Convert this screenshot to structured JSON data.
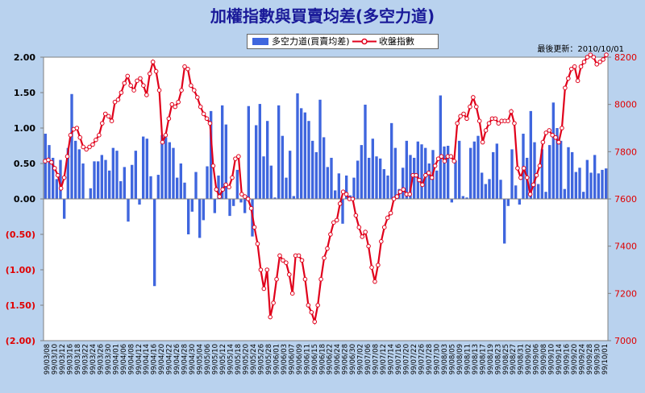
{
  "header": {
    "title": "加權指數與買賣均差(多空力道)",
    "update_text": "最後更新：2010/10/01"
  },
  "legend": {
    "bar_label": "多空力道(買賣均差)",
    "line_label": "收盤指數"
  },
  "colors": {
    "bar": "#3f66de",
    "line": "#e0001b",
    "marker_fill": "#ffffff",
    "plot_bg": "#ffffff",
    "right_axis_text": "#e00000"
  },
  "chart_data": {
    "type": "bar+line",
    "title": "加權指數與買賣均差(多空力道)",
    "left_axis": {
      "ylim": [
        -2.0,
        2.0
      ],
      "ticks": [
        2.0,
        1.5,
        1.0,
        0.5,
        0.0,
        -0.5,
        -1.0,
        -1.5,
        -2.0
      ],
      "tick_labels": [
        "2.00",
        "1.50",
        "1.00",
        "0.50",
        "0.00",
        "(0.50)",
        "(1.00)",
        "(1.50)",
        "(2.00)"
      ]
    },
    "right_axis": {
      "ylim": [
        7000,
        8200
      ],
      "ticks": [
        8200,
        8000,
        7800,
        7600,
        7400,
        7200,
        7000
      ],
      "tick_labels": [
        "8200",
        "8000",
        "7800",
        "7600",
        "7400",
        "7200",
        "7000"
      ]
    },
    "x_tick_labels": [
      "99/03/08",
      "99/03/10",
      "99/03/12",
      "99/03/16",
      "99/03/18",
      "99/03/22",
      "99/03/24",
      "99/03/26",
      "99/03/30",
      "99/04/01",
      "99/04/06",
      "99/04/08",
      "99/04/12",
      "99/04/14",
      "99/04/16",
      "99/04/20",
      "99/04/22",
      "99/04/26",
      "99/04/28",
      "99/04/30",
      "99/05/04",
      "99/05/06",
      "99/05/10",
      "99/05/12",
      "99/05/14",
      "99/05/18",
      "99/05/20",
      "99/05/24",
      "99/05/26",
      "99/05/28",
      "99/06/01",
      "99/06/03",
      "99/06/07",
      "99/06/09",
      "99/06/11",
      "99/06/15",
      "99/06/18",
      "99/06/22",
      "99/06/24",
      "99/06/28",
      "99/06/30",
      "99/07/02",
      "99/07/06",
      "99/07/08",
      "99/07/12",
      "99/07/14",
      "99/07/16",
      "99/07/20",
      "99/07/22",
      "99/07/26",
      "99/07/28",
      "99/07/30",
      "99/08/03",
      "99/08/05",
      "99/08/09",
      "99/08/11",
      "99/08/13",
      "99/08/17",
      "99/08/19",
      "99/08/23",
      "99/08/25",
      "99/08/27",
      "99/08/31",
      "99/09/02",
      "99/09/06",
      "99/09/08",
      "99/09/10",
      "99/09/14",
      "99/09/16",
      "99/09/20",
      "99/09/24",
      "99/09/28",
      "99/09/30",
      "99/10/01"
    ],
    "series": [
      {
        "name": "多空力道(買賣均差)",
        "type": "bar",
        "axis": "left",
        "values": [
          0.92,
          0.76,
          0.58,
          0.28,
          0.55,
          -0.28,
          0.72,
          1.48,
          0.82,
          0.7,
          0.5,
          0.0,
          0.15,
          0.53,
          0.53,
          0.62,
          0.55,
          0.4,
          0.72,
          0.68,
          0.25,
          0.45,
          -0.32,
          0.48,
          0.68,
          -0.08,
          0.88,
          0.85,
          0.32,
          -1.23,
          0.34,
          0.9,
          0.87,
          0.8,
          0.72,
          0.3,
          0.5,
          0.23,
          -0.5,
          -0.18,
          0.38,
          -0.55,
          -0.3,
          0.46,
          1.24,
          -0.2,
          0.33,
          1.32,
          1.05,
          -0.24,
          -0.1,
          0.41,
          -0.05,
          -0.2,
          1.31,
          -0.53,
          1.04,
          1.34,
          0.6,
          1.1,
          0.47,
          0.02,
          1.32,
          0.89,
          0.3,
          0.68,
          0.04,
          1.49,
          1.28,
          1.22,
          1.1,
          0.82,
          0.66,
          1.4,
          0.87,
          0.45,
          0.58,
          0.12,
          0.36,
          -0.35,
          0.33,
          0.05,
          0.3,
          0.54,
          0.76,
          1.33,
          0.58,
          0.85,
          0.6,
          0.57,
          0.42,
          0.33,
          1.07,
          0.72,
          0.14,
          0.44,
          0.82,
          0.62,
          0.58,
          0.81,
          0.77,
          0.72,
          0.5,
          0.69,
          0.4,
          1.46,
          0.74,
          0.75,
          -0.05,
          0.54,
          0.82,
          0.04,
          0.02,
          0.72,
          0.81,
          0.89,
          0.37,
          0.21,
          0.28,
          0.66,
          0.78,
          0.27,
          -0.63,
          -0.1,
          0.7,
          0.19,
          -0.08,
          0.92,
          0.58,
          1.24,
          0.8,
          0.21,
          0.7,
          0.1,
          0.76,
          1.36,
          1.0,
          0.82,
          0.14,
          0.73,
          0.66,
          0.38,
          0.44,
          0.1,
          0.55,
          0.37,
          0.62,
          0.36,
          0.41,
          0.43
        ]
      },
      {
        "name": "收盤指數",
        "type": "line",
        "axis": "right",
        "values": [
          7760,
          7765,
          7755,
          7730,
          7700,
          7645,
          7690,
          7780,
          7870,
          7895,
          7900,
          7860,
          7820,
          7810,
          7820,
          7830,
          7850,
          7870,
          7920,
          7960,
          7950,
          7930,
          8010,
          8020,
          8050,
          8090,
          8120,
          8080,
          8060,
          8100,
          8110,
          8080,
          8040,
          8130,
          8180,
          8140,
          8060,
          7840,
          7870,
          7940,
          8000,
          7990,
          8010,
          8060,
          8160,
          8150,
          8080,
          8060,
          8030,
          7990,
          7960,
          7940,
          7920,
          7740,
          7640,
          7610,
          7640,
          7660,
          7650,
          7690,
          7770,
          7780,
          7620,
          7610,
          7600,
          7560,
          7480,
          7410,
          7300,
          7220,
          7300,
          7100,
          7160,
          7260,
          7360,
          7340,
          7330,
          7280,
          7200,
          7360,
          7360,
          7340,
          7260,
          7150,
          7120,
          7080,
          7150,
          7260,
          7350,
          7390,
          7450,
          7500,
          7510,
          7580,
          7630,
          7620,
          7600,
          7600,
          7530,
          7480,
          7440,
          7460,
          7400,
          7310,
          7250,
          7320,
          7420,
          7480,
          7520,
          7540,
          7600,
          7610,
          7630,
          7640,
          7620,
          7620,
          7700,
          7700,
          7680,
          7660,
          7700,
          7710,
          7690,
          7740,
          7770,
          7780,
          7760,
          7780,
          7780,
          7760,
          7920,
          7950,
          7960,
          7940,
          7990,
          8030,
          7990,
          7930,
          7840,
          7890,
          7920,
          7940,
          7940,
          7920,
          7930,
          7930,
          7930,
          7970,
          7920,
          7730,
          7690,
          7730,
          7690,
          7620,
          7660,
          7700,
          7740,
          7840,
          7880,
          7890,
          7870,
          7860,
          7840,
          7900,
          8070,
          8110,
          8150,
          8160,
          8100,
          8160,
          8180,
          8200,
          8210,
          8200,
          8170,
          8180,
          8190,
          8210
        ]
      }
    ],
    "grid": false,
    "legend_position": "top-center"
  }
}
